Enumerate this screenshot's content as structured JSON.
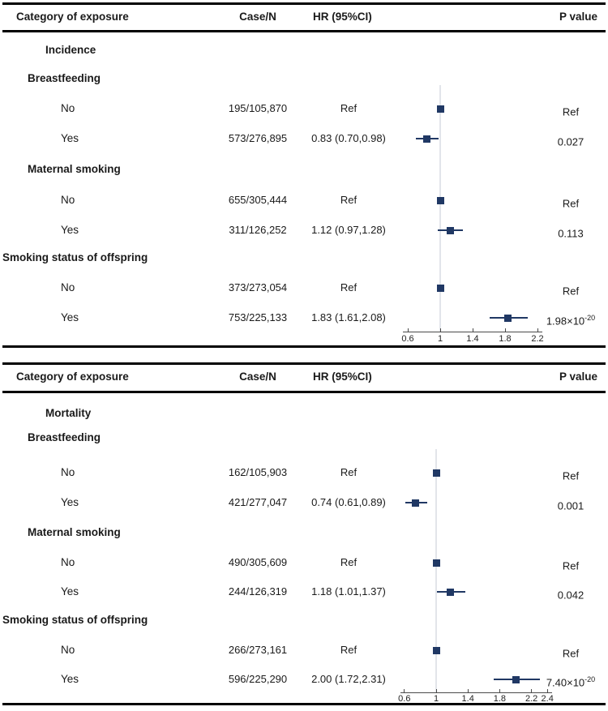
{
  "columns": {
    "category": "Category of exposure",
    "case_n": "Case/N",
    "hr": "HR (95%CI)",
    "p": "P value"
  },
  "colors": {
    "marker": "#203864",
    "ci_line": "#203864",
    "reference_line": "#e2e5ea",
    "axis": "#4a4a4a",
    "text": "#1a1a1a"
  },
  "panels": [
    {
      "name": "Incidence",
      "axis_ticks": [
        {
          "label": "0.6",
          "value": 0.6
        },
        {
          "label": "1",
          "value": 1.0
        },
        {
          "label": "1.4",
          "value": 1.4
        },
        {
          "label": "1.8",
          "value": 1.8
        },
        {
          "label": "2.2",
          "value": 2.2
        }
      ],
      "rows": [
        {
          "type": "group",
          "indent": 2,
          "label": "Incidence"
        },
        {
          "type": "group",
          "indent": 1,
          "label": "Breastfeeding"
        },
        {
          "type": "item",
          "label": "No",
          "case_n": "195/105,870",
          "hr_text": "Ref",
          "p_main": "Ref",
          "p_sup": "",
          "est": 1.0,
          "lo": 1.0,
          "hi": 1.0
        },
        {
          "type": "item",
          "label": "Yes",
          "case_n": "573/276,895",
          "hr_text": "0.83 (0.70,0.98)",
          "p_main": "0.027",
          "p_sup": "",
          "est": 0.83,
          "lo": 0.7,
          "hi": 0.98
        },
        {
          "type": "group",
          "indent": 1,
          "label": "Maternal smoking"
        },
        {
          "type": "item",
          "label": "No",
          "case_n": "655/305,444",
          "hr_text": "Ref",
          "p_main": "Ref",
          "p_sup": "",
          "est": 1.0,
          "lo": 1.0,
          "hi": 1.0
        },
        {
          "type": "item",
          "label": "Yes",
          "case_n": "311/126,252",
          "hr_text": "1.12 (0.97,1.28)",
          "p_main": "0.113",
          "p_sup": "",
          "est": 1.12,
          "lo": 0.97,
          "hi": 1.28
        },
        {
          "type": "group",
          "indent": 0,
          "label": "Smoking status of offspring"
        },
        {
          "type": "item",
          "label": "No",
          "case_n": "373/273,054",
          "hr_text": "Ref",
          "p_main": "Ref",
          "p_sup": "",
          "est": 1.0,
          "lo": 1.0,
          "hi": 1.0
        },
        {
          "type": "item",
          "label": "Yes",
          "case_n": "753/225,133",
          "hr_text": "1.83 (1.61,2.08)",
          "p_main": "1.98×10",
          "p_sup": "-20",
          "est": 1.83,
          "lo": 1.61,
          "hi": 2.08
        }
      ]
    },
    {
      "name": "Mortality",
      "axis_ticks": [
        {
          "label": "0.6",
          "value": 0.6
        },
        {
          "label": "1",
          "value": 1.0
        },
        {
          "label": "1.4",
          "value": 1.4
        },
        {
          "label": "1.8",
          "value": 1.8
        },
        {
          "label": "2.2",
          "value": 2.2
        },
        {
          "label": "2.4",
          "value": 2.4
        }
      ],
      "rows": [
        {
          "type": "group",
          "indent": 2,
          "label": "Mortality"
        },
        {
          "type": "group",
          "indent": 1,
          "label": "Breastfeeding"
        },
        {
          "type": "item",
          "label": "No",
          "case_n": "162/105,903",
          "hr_text": "Ref",
          "p_main": "Ref",
          "p_sup": "",
          "est": 1.0,
          "lo": 1.0,
          "hi": 1.0
        },
        {
          "type": "item",
          "label": "Yes",
          "case_n": "421/277,047",
          "hr_text": "0.74 (0.61,0.89)",
          "p_main": "0.001",
          "p_sup": "",
          "est": 0.74,
          "lo": 0.61,
          "hi": 0.89
        },
        {
          "type": "group",
          "indent": 1,
          "label": "Maternal smoking"
        },
        {
          "type": "item",
          "label": "No",
          "case_n": "490/305,609",
          "hr_text": "Ref",
          "p_main": "Ref",
          "p_sup": "",
          "est": 1.0,
          "lo": 1.0,
          "hi": 1.0
        },
        {
          "type": "item",
          "label": "Yes",
          "case_n": "244/126,319",
          "hr_text": "1.18 (1.01,1.37)",
          "p_main": "0.042",
          "p_sup": "",
          "est": 1.18,
          "lo": 1.01,
          "hi": 1.37
        },
        {
          "type": "group",
          "indent": 0,
          "label": "Smoking status of offspring"
        },
        {
          "type": "item",
          "label": "No",
          "case_n": "266/273,161",
          "hr_text": "Ref",
          "p_main": "Ref",
          "p_sup": "",
          "est": 1.0,
          "lo": 1.0,
          "hi": 1.0
        },
        {
          "type": "item",
          "label": "Yes",
          "case_n": "596/225,290",
          "hr_text": "2.00 (1.72,2.31)",
          "p_main": "7.40×10",
          "p_sup": "-20",
          "est": 2.0,
          "lo": 1.72,
          "hi": 2.31
        }
      ]
    }
  ],
  "chart_data": [
    {
      "type": "scatter",
      "subtype": "forest-plot",
      "title": "Incidence",
      "xlabel": "HR (95%CI)",
      "x_ticks": [
        0.6,
        1,
        1.4,
        1.8,
        2.2
      ],
      "xlim": [
        0.6,
        2.2
      ],
      "reference_line_x": 1.0,
      "grid": false,
      "series": [
        {
          "name": "Breastfeeding",
          "points": [
            {
              "label": "No",
              "case_n": "195/105,870",
              "hr": 1.0,
              "ci_low": null,
              "ci_high": null,
              "p": "Ref"
            },
            {
              "label": "Yes",
              "case_n": "573/276,895",
              "hr": 0.83,
              "ci_low": 0.7,
              "ci_high": 0.98,
              "p": "0.027"
            }
          ]
        },
        {
          "name": "Maternal smoking",
          "points": [
            {
              "label": "No",
              "case_n": "655/305,444",
              "hr": 1.0,
              "ci_low": null,
              "ci_high": null,
              "p": "Ref"
            },
            {
              "label": "Yes",
              "case_n": "311/126,252",
              "hr": 1.12,
              "ci_low": 0.97,
              "ci_high": 1.28,
              "p": "0.113"
            }
          ]
        },
        {
          "name": "Smoking status of offspring",
          "points": [
            {
              "label": "No",
              "case_n": "373/273,054",
              "hr": 1.0,
              "ci_low": null,
              "ci_high": null,
              "p": "Ref"
            },
            {
              "label": "Yes",
              "case_n": "753/225,133",
              "hr": 1.83,
              "ci_low": 1.61,
              "ci_high": 2.08,
              "p": "1.98×10⁻²⁰"
            }
          ]
        }
      ]
    },
    {
      "type": "scatter",
      "subtype": "forest-plot",
      "title": "Mortality",
      "xlabel": "HR (95%CI)",
      "x_ticks": [
        0.6,
        1,
        1.4,
        1.8,
        2.2,
        2.4
      ],
      "xlim": [
        0.6,
        2.4
      ],
      "reference_line_x": 1.0,
      "grid": false,
      "series": [
        {
          "name": "Breastfeeding",
          "points": [
            {
              "label": "No",
              "case_n": "162/105,903",
              "hr": 1.0,
              "ci_low": null,
              "ci_high": null,
              "p": "Ref"
            },
            {
              "label": "Yes",
              "case_n": "421/277,047",
              "hr": 0.74,
              "ci_low": 0.61,
              "ci_high": 0.89,
              "p": "0.001"
            }
          ]
        },
        {
          "name": "Maternal smoking",
          "points": [
            {
              "label": "No",
              "case_n": "490/305,609",
              "hr": 1.0,
              "ci_low": null,
              "ci_high": null,
              "p": "Ref"
            },
            {
              "label": "Yes",
              "case_n": "244/126,319",
              "hr": 1.18,
              "ci_low": 1.01,
              "ci_high": 1.37,
              "p": "0.042"
            }
          ]
        },
        {
          "name": "Smoking status of offspring",
          "points": [
            {
              "label": "No",
              "case_n": "266/273,161",
              "hr": 1.0,
              "ci_low": null,
              "ci_high": null,
              "p": "Ref"
            },
            {
              "label": "Yes",
              "case_n": "596/225,290",
              "hr": 2.0,
              "ci_low": 1.72,
              "ci_high": 2.31,
              "p": "7.40×10⁻²⁰"
            }
          ]
        }
      ]
    }
  ]
}
